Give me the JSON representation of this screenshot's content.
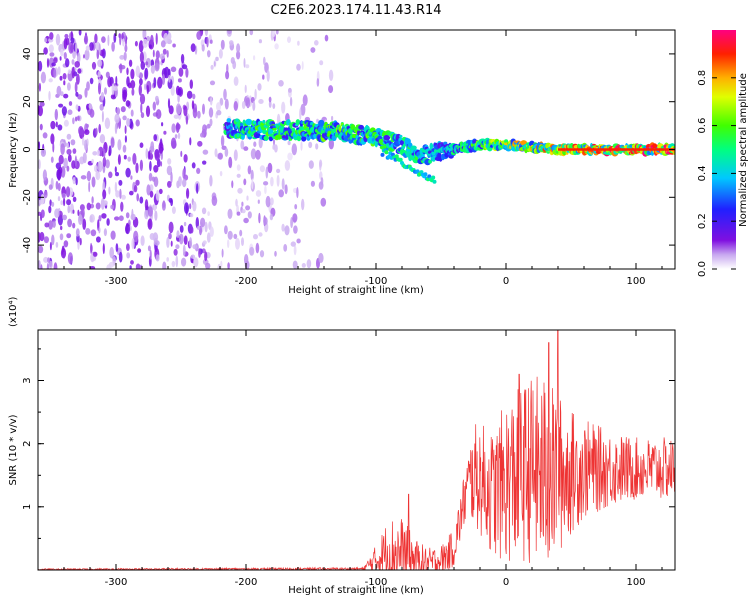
{
  "title": "C2E6.2023.174.11.43.R14",
  "chart_data": [
    {
      "type": "heatmap",
      "title": "C2E6.2023.174.11.43.R14",
      "xlabel": "Height of straight line (km)",
      "ylabel": "Frequency (Hz)",
      "xlim": [
        -360,
        130
      ],
      "ylim": [
        -50,
        50
      ],
      "xticks": [
        -300,
        -200,
        -100,
        0,
        100
      ],
      "xtick_labels": [
        "-300",
        "-200",
        "-100",
        "0",
        "100"
      ],
      "yticks": [
        -40,
        -20,
        0,
        20,
        40
      ],
      "ytick_labels": [
        "-40",
        "-20",
        "0",
        "20",
        "40"
      ],
      "colorbar": {
        "label": "Normalized spectral amplitude",
        "range": [
          0,
          1
        ],
        "ticks": [
          0.0,
          0.2,
          0.4,
          0.6,
          0.8
        ],
        "tick_labels": [
          "0.0",
          "0.2",
          "0.4",
          "0.6",
          "0.8"
        ],
        "colormap": "rainbow"
      },
      "ridge": {
        "x": [
          -215,
          -180,
          -150,
          -120,
          -100,
          -80,
          -65,
          -55,
          -45,
          -35,
          -20,
          0,
          20,
          40,
          60,
          80,
          100,
          130
        ],
        "y": [
          9,
          8,
          8,
          7,
          5,
          2,
          -3,
          -1,
          0,
          1,
          2,
          2,
          1,
          0,
          0,
          0,
          0,
          0
        ],
        "amplitude": [
          0.5,
          0.55,
          0.55,
          0.6,
          0.55,
          0.5,
          0.5,
          0.45,
          0.45,
          0.5,
          0.6,
          0.7,
          0.75,
          0.8,
          0.85,
          0.9,
          0.9,
          0.9
        ]
      },
      "noise_region_x": [
        -360,
        -130
      ]
    },
    {
      "type": "line",
      "title": "",
      "xlabel": "Height of straight line (km)",
      "ylabel": "SNR (10 * v/v)",
      "yscale_label": "(x10⁴)",
      "xlim": [
        -360,
        130
      ],
      "ylim": [
        0,
        3.8
      ],
      "xticks": [
        -300,
        -200,
        -100,
        0,
        100
      ],
      "xtick_labels": [
        "-300",
        "-200",
        "-100",
        "0",
        "100"
      ],
      "yticks": [
        1,
        2,
        3
      ],
      "ytick_labels": [
        "1",
        "2",
        "3"
      ],
      "color": "#ee3333",
      "envelope": {
        "x": [
          -360,
          -110,
          -100,
          -90,
          -80,
          -70,
          -60,
          -50,
          -40,
          -30,
          -25,
          -20,
          -10,
          0,
          10,
          20,
          30,
          40,
          50,
          60,
          80,
          100,
          130
        ],
        "baseline": [
          0.01,
          0.02,
          0.15,
          0.3,
          0.25,
          0.15,
          0.1,
          0.15,
          0.35,
          1.3,
          1.5,
          1.45,
          1.2,
          1.4,
          1.5,
          1.6,
          1.5,
          1.5,
          1.55,
          1.6,
          1.6,
          1.6,
          1.6
        ],
        "amplitude": [
          0.01,
          0.02,
          0.25,
          0.55,
          0.6,
          0.35,
          0.25,
          0.25,
          0.3,
          0.5,
          0.8,
          0.9,
          1.0,
          1.3,
          1.4,
          1.5,
          1.6,
          1.3,
          1.0,
          0.8,
          0.6,
          0.5,
          0.5
        ]
      },
      "peaks": [
        {
          "x": -75,
          "y": 1.2
        },
        {
          "x": 10,
          "y": 3.1
        },
        {
          "x": 33,
          "y": 3.6
        },
        {
          "x": 40,
          "y": 3.8
        }
      ]
    }
  ]
}
